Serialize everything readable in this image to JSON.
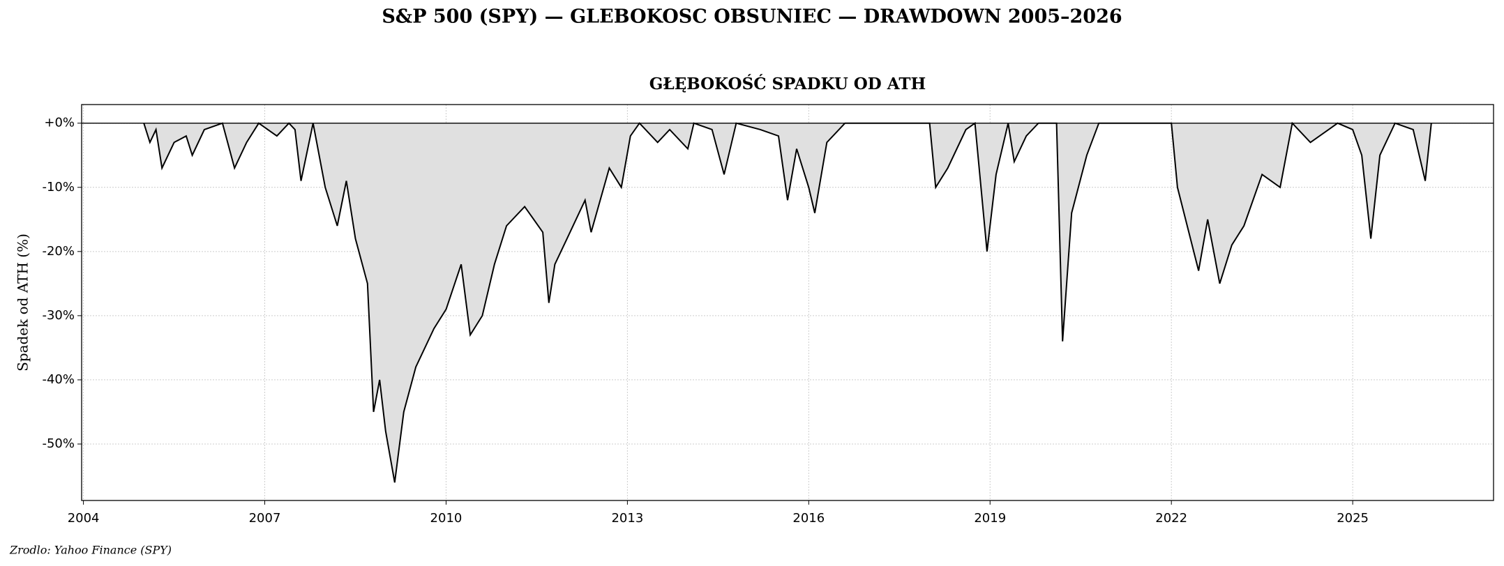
{
  "chart_data": {
    "type": "area",
    "title": "S&P 500 (SPY) — GLEBOKOSC OBSUNIEC — DRAWDOWN 2005–2026",
    "subtitle": "GŁĘBOKOŚĆ SPADKU OD ATH",
    "ylabel": "Spadek od ATH (%)",
    "source": "Zrodlo: Yahoo Finance (SPY)",
    "xlim": [
      2003.97,
      2027.33
    ],
    "xticks": [
      2004,
      2007,
      2010,
      2013,
      2016,
      2019,
      2022,
      2025
    ],
    "ylim": [
      -58.8,
      2.9
    ],
    "yticks": [
      {
        "value": 0,
        "label": "+0%"
      },
      {
        "value": -10,
        "label": "-10%"
      },
      {
        "value": -20,
        "label": "-20%"
      },
      {
        "value": -30,
        "label": "-30%"
      },
      {
        "value": -40,
        "label": "-40%"
      },
      {
        "value": -50,
        "label": "-50%"
      }
    ],
    "grid": true,
    "hline": 0,
    "line_color": "#000000",
    "fill_color": "#e0e0e0",
    "x": [
      2005.0,
      2005.1,
      2005.2,
      2005.3,
      2005.5,
      2005.7,
      2005.8,
      2006.0,
      2006.3,
      2006.5,
      2006.7,
      2006.9,
      2007.2,
      2007.4,
      2007.5,
      2007.6,
      2007.8,
      2008.0,
      2008.2,
      2008.35,
      2008.5,
      2008.7,
      2008.8,
      2008.9,
      2009.0,
      2009.15,
      2009.3,
      2009.5,
      2009.8,
      2010.0,
      2010.25,
      2010.4,
      2010.6,
      2010.8,
      2011.0,
      2011.3,
      2011.6,
      2011.7,
      2011.8,
      2012.0,
      2012.3,
      2012.4,
      2012.7,
      2012.9,
      2013.05,
      2013.2,
      2013.5,
      2013.7,
      2014.0,
      2014.1,
      2014.4,
      2014.6,
      2014.8,
      2015.2,
      2015.5,
      2015.65,
      2015.8,
      2016.0,
      2016.1,
      2016.3,
      2016.6,
      2017.0,
      2017.5,
      2018.0,
      2018.1,
      2018.3,
      2018.6,
      2018.75,
      2018.95,
      2019.1,
      2019.3,
      2019.4,
      2019.6,
      2019.8,
      2020.1,
      2020.2,
      2020.35,
      2020.6,
      2020.8,
      2021.0,
      2021.5,
      2022.0,
      2022.1,
      2022.45,
      2022.6,
      2022.8,
      2023.0,
      2023.2,
      2023.5,
      2023.8,
      2024.0,
      2024.3,
      2024.6,
      2024.75,
      2025.0,
      2025.15,
      2025.3,
      2025.45,
      2025.7,
      2026.0,
      2026.2,
      2026.3
    ],
    "values": [
      0,
      -3,
      -1,
      -7,
      -3,
      -2,
      -5,
      -1,
      0,
      -7,
      -3,
      0,
      -2,
      0,
      -1,
      -9,
      0,
      -10,
      -16,
      -9,
      -18,
      -25,
      -45,
      -40,
      -48,
      -56,
      -45,
      -38,
      -32,
      -29,
      -22,
      -33,
      -30,
      -22,
      -16,
      -13,
      -17,
      -28,
      -22,
      -18,
      -12,
      -17,
      -7,
      -10,
      -2,
      0,
      -3,
      -1,
      -4,
      0,
      -1,
      -8,
      0,
      -1,
      -2,
      -12,
      -4,
      -10,
      -14,
      -3,
      0,
      0,
      0,
      0,
      -10,
      -7,
      -1,
      0,
      -20,
      -8,
      0,
      -6,
      -2,
      0,
      0,
      -34,
      -14,
      -5,
      0,
      0,
      0,
      0,
      -10,
      -23,
      -15,
      -25,
      -19,
      -16,
      -8,
      -10,
      0,
      -3,
      -1,
      0,
      -1,
      -5,
      -18,
      -5,
      0,
      -1,
      -9,
      0
    ]
  }
}
